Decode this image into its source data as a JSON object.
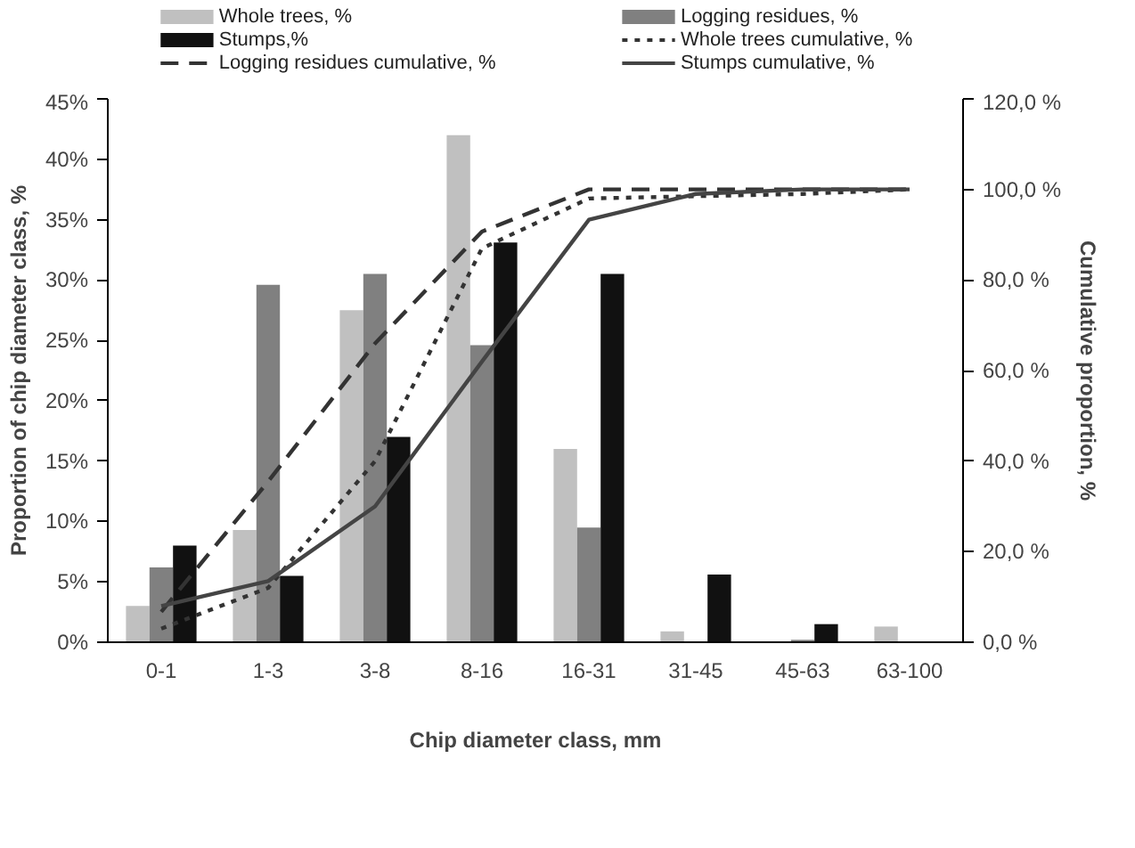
{
  "chart_data": {
    "type": "bar",
    "xlabel": "Chip diameter class, mm",
    "ylabel": "Proportion of chip diameter class, %",
    "y2label": "Cumulative proportion, %",
    "categories": [
      "0-1",
      "1-3",
      "3-8",
      "8-16",
      "16-31",
      "31-45",
      "45-63",
      "63-100"
    ],
    "series": [
      {
        "name": "Whole trees, %",
        "color": "#c0c0c0",
        "values": [
          3,
          9.3,
          27.5,
          42,
          16,
          0.9,
          0,
          1.3
        ]
      },
      {
        "name": "Logging residues, %",
        "color": "#808080",
        "values": [
          6.2,
          29.6,
          30.5,
          24.6,
          9.5,
          0,
          0.2,
          0
        ]
      },
      {
        "name": "Stumps,%",
        "color": "#111111",
        "values": [
          8,
          5.5,
          17,
          33.1,
          30.5,
          5.6,
          1.5,
          0
        ]
      },
      {
        "name": "Whole trees cumulative, %",
        "type": "line",
        "axis": "y2",
        "line_style": "dotted",
        "color": "#333333",
        "values": [
          3,
          12,
          40,
          87,
          98,
          98.5,
          99,
          100
        ]
      },
      {
        "name": "Logging residues cumulative, %",
        "type": "line",
        "axis": "y2",
        "line_style": "dashed",
        "color": "#333333",
        "values": [
          6.7,
          35.5,
          66,
          90.7,
          100,
          100,
          100,
          100
        ]
      },
      {
        "name": "Stumps cumulative, %",
        "type": "line",
        "axis": "y2",
        "line_style": "solid",
        "color": "#444444",
        "values": [
          8,
          13.5,
          30,
          62,
          93.3,
          99,
          100,
          100
        ]
      }
    ],
    "ylim": [
      0,
      45
    ],
    "yticks": [
      {
        "value": 0,
        "label": "0%"
      },
      {
        "value": 5,
        "label": "5%"
      },
      {
        "value": 10,
        "label": "10%"
      },
      {
        "value": 15,
        "label": "15%"
      },
      {
        "value": 20,
        "label": "20%"
      },
      {
        "value": 25,
        "label": "25%"
      },
      {
        "value": 30,
        "label": "30%"
      },
      {
        "value": 35,
        "label": "35%"
      },
      {
        "value": 40,
        "label": "40%"
      },
      {
        "value": 45,
        "label": "45%"
      }
    ],
    "y2lim": [
      0,
      120
    ],
    "y2ticks": [
      {
        "value": 0,
        "label": "0,0 %"
      },
      {
        "value": 20,
        "label": "20,0 %"
      },
      {
        "value": 40,
        "label": "40,0 %"
      },
      {
        "value": 60,
        "label": "60,0 %"
      },
      {
        "value": 80,
        "label": "80,0 %"
      },
      {
        "value": 100,
        "label": "100,0 %"
      },
      {
        "value": 120,
        "label": "120,0 %"
      }
    ],
    "grid": false,
    "legend": "top"
  }
}
